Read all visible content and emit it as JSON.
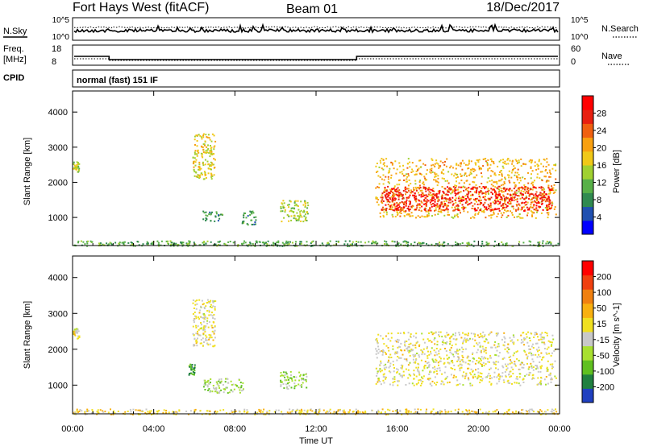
{
  "header": {
    "title": "Fort Hays West (fitACF)",
    "beam": "Beam 01",
    "date": "18/Dec/2017"
  },
  "noise_panel": {
    "left_label": "N.Sky",
    "right_label": "N.Search",
    "left_ticks": [
      "10^5",
      "10^0"
    ],
    "right_ticks": [
      "10^5",
      "10^0"
    ]
  },
  "freq_panel": {
    "left_label_line1": "Freq.",
    "left_label_line2": "[MHz]",
    "right_label": "Nave",
    "left_ticks": [
      "18",
      "8"
    ],
    "right_ticks": [
      "60",
      "0"
    ]
  },
  "cpid_panel": {
    "label": "CPID",
    "text": "normal (fast) 151 IF"
  },
  "colors": {
    "power_scale": [
      "#0000ff",
      "#2050b0",
      "#308a50",
      "#58b048",
      "#a0d030",
      "#f0c818",
      "#f8a010",
      "#f06010",
      "#e82010",
      "#ff0000"
    ],
    "velocity_scale": [
      "#2040c0",
      "#208040",
      "#60c020",
      "#a8e030",
      "#c8c8c8",
      "#f0e020",
      "#f8b010",
      "#f08010",
      "#f04010",
      "#ff0000"
    ]
  },
  "chart_data": [
    {
      "type": "heatmap",
      "title": "",
      "xlabel": "",
      "ylabel": "Slant Range [km]",
      "x_ticks": [
        "00:00",
        "04:00",
        "08:00",
        "12:00",
        "16:00",
        "20:00",
        "00:00"
      ],
      "y_ticks": [
        "1000",
        "2000",
        "3000",
        "4000"
      ],
      "xlim": [
        0,
        24
      ],
      "ylim": [
        200,
        4600
      ],
      "colorbar": {
        "label": "Power [dB]",
        "ticks": [
          "28",
          "24",
          "20",
          "16",
          "12",
          "8",
          "4"
        ],
        "range": [
          0,
          30
        ]
      },
      "regions": [
        {
          "t0": 0.0,
          "t1": 0.3,
          "r0": 2300,
          "r1": 2600,
          "value": 14
        },
        {
          "t0": 5.9,
          "t1": 7.0,
          "r0": 2100,
          "r1": 3400,
          "value": 16
        },
        {
          "t0": 6.4,
          "t1": 7.4,
          "r0": 900,
          "r1": 1200,
          "value": 9
        },
        {
          "t0": 8.3,
          "t1": 9.0,
          "r0": 800,
          "r1": 1200,
          "value": 9
        },
        {
          "t0": 10.2,
          "t1": 11.6,
          "r0": 900,
          "r1": 1500,
          "value": 14
        },
        {
          "t0": 14.9,
          "t1": 23.8,
          "r0": 1000,
          "r1": 2700,
          "value": 18
        },
        {
          "t0": 15.2,
          "t1": 23.6,
          "r0": 1200,
          "r1": 1900,
          "value": 26
        },
        {
          "t0": 0.0,
          "t1": 24.0,
          "r0": 200,
          "r1": 350,
          "value": 10
        }
      ]
    },
    {
      "type": "heatmap",
      "title": "",
      "xlabel": "Time UT",
      "ylabel": "Slant Range [km]",
      "x_ticks": [
        "00:00",
        "04:00",
        "08:00",
        "12:00",
        "16:00",
        "20:00",
        "00:00"
      ],
      "y_ticks": [
        "1000",
        "2000",
        "3000",
        "4000"
      ],
      "xlim": [
        0,
        24
      ],
      "ylim": [
        200,
        4600
      ],
      "colorbar": {
        "label": "Velocity [m s^-1]",
        "ticks": [
          "200",
          "100",
          "50",
          "15",
          "-15",
          "-50",
          "-100",
          "-200"
        ],
        "range": [
          -250,
          250
        ]
      },
      "regions": [
        {
          "t0": 0.0,
          "t1": 0.3,
          "r0": 2300,
          "r1": 2600,
          "value": 0
        },
        {
          "t0": 5.9,
          "t1": 7.0,
          "r0": 2100,
          "r1": 3400,
          "value": 0
        },
        {
          "t0": 5.7,
          "t1": 6.0,
          "r0": 1300,
          "r1": 1600,
          "value": -150
        },
        {
          "t0": 6.4,
          "t1": 8.4,
          "r0": 800,
          "r1": 1200,
          "value": -60
        },
        {
          "t0": 10.2,
          "t1": 11.5,
          "r0": 900,
          "r1": 1400,
          "value": -80
        },
        {
          "t0": 14.9,
          "t1": 23.8,
          "r0": 1000,
          "r1": 2500,
          "value": 0
        },
        {
          "t0": 0.0,
          "t1": 24.0,
          "r0": 200,
          "r1": 350,
          "value": 30
        }
      ]
    }
  ]
}
